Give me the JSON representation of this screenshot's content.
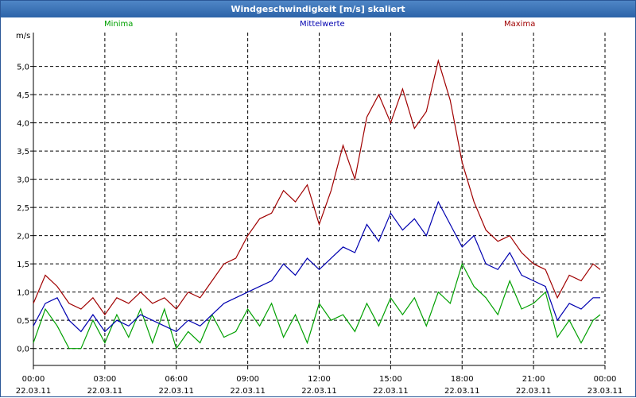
{
  "window": {
    "title": "Windgeschwindigkeit [m/s] skaliert"
  },
  "chart_data": {
    "type": "line",
    "title": "Windgeschwindigkeit [m/s] skaliert",
    "ylabel": "m/s",
    "ylim": [
      -0.3,
      5.6
    ],
    "xlim": [
      0,
      24
    ],
    "y_ticks": [
      "0,0",
      "0,5",
      "1,0",
      "1,5",
      "2,0",
      "2,5",
      "3,0",
      "3,5",
      "4,0",
      "4,5",
      "5,0"
    ],
    "y_tick_values": [
      0,
      0.5,
      1,
      1.5,
      2,
      2.5,
      3,
      3.5,
      4,
      4.5,
      5
    ],
    "x_ticks": [
      {
        "time": "00:00",
        "date": "22.03.11",
        "hour": 0
      },
      {
        "time": "03:00",
        "date": "22.03.11",
        "hour": 3
      },
      {
        "time": "06:00",
        "date": "22.03.11",
        "hour": 6
      },
      {
        "time": "09:00",
        "date": "22.03.11",
        "hour": 9
      },
      {
        "time": "12:00",
        "date": "22.03.11",
        "hour": 12
      },
      {
        "time": "15:00",
        "date": "22.03.11",
        "hour": 15
      },
      {
        "time": "18:00",
        "date": "22.03.11",
        "hour": 18
      },
      {
        "time": "21:00",
        "date": "22.03.11",
        "hour": 21
      },
      {
        "time": "00:00",
        "date": "23.03.11",
        "hour": 24
      }
    ],
    "grid": true,
    "legend_placement": "top",
    "series": [
      {
        "name": "Minima",
        "color": "#00a000",
        "x": [
          0,
          0.5,
          1,
          1.5,
          2,
          2.5,
          3,
          3.5,
          4,
          4.5,
          5,
          5.5,
          6,
          6.5,
          7,
          7.5,
          8,
          8.5,
          9,
          9.5,
          10,
          10.5,
          11,
          11.5,
          12,
          12.5,
          13,
          13.5,
          14,
          14.5,
          15,
          15.5,
          16,
          16.5,
          17,
          17.5,
          18,
          18.5,
          19,
          19.5,
          20,
          20.5,
          21,
          21.5,
          22,
          22.5,
          23,
          23.5,
          23.8
        ],
        "y": [
          0.1,
          0.7,
          0.4,
          0.0,
          0.0,
          0.5,
          0.1,
          0.6,
          0.2,
          0.7,
          0.1,
          0.7,
          0.0,
          0.3,
          0.1,
          0.6,
          0.2,
          0.3,
          0.7,
          0.4,
          0.8,
          0.2,
          0.6,
          0.1,
          0.8,
          0.5,
          0.6,
          0.3,
          0.8,
          0.4,
          0.9,
          0.6,
          0.9,
          0.4,
          1.0,
          0.8,
          1.5,
          1.1,
          0.9,
          0.6,
          1.2,
          0.7,
          0.8,
          1.0,
          0.2,
          0.5,
          0.1,
          0.5,
          0.6
        ]
      },
      {
        "name": "Mittelwerte",
        "color": "#0000b0",
        "x": [
          0,
          0.5,
          1,
          1.5,
          2,
          2.5,
          3,
          3.5,
          4,
          4.5,
          5,
          5.5,
          6,
          6.5,
          7,
          7.5,
          8,
          8.5,
          9,
          9.5,
          10,
          10.5,
          11,
          11.5,
          12,
          12.5,
          13,
          13.5,
          14,
          14.5,
          15,
          15.5,
          16,
          16.5,
          17,
          17.5,
          18,
          18.5,
          19,
          19.5,
          20,
          20.5,
          21,
          21.5,
          22,
          22.5,
          23,
          23.5,
          23.8
        ],
        "y": [
          0.4,
          0.8,
          0.9,
          0.5,
          0.3,
          0.6,
          0.3,
          0.5,
          0.4,
          0.6,
          0.5,
          0.4,
          0.3,
          0.5,
          0.4,
          0.6,
          0.8,
          0.9,
          1.0,
          1.1,
          1.2,
          1.5,
          1.3,
          1.6,
          1.4,
          1.6,
          1.8,
          1.7,
          2.2,
          1.9,
          2.4,
          2.1,
          2.3,
          2.0,
          2.6,
          2.2,
          1.8,
          2.0,
          1.5,
          1.4,
          1.7,
          1.3,
          1.2,
          1.1,
          0.5,
          0.8,
          0.7,
          0.9,
          0.9
        ]
      },
      {
        "name": "Maxima",
        "color": "#a00000",
        "x": [
          0,
          0.5,
          1,
          1.5,
          2,
          2.5,
          3,
          3.5,
          4,
          4.5,
          5,
          5.5,
          6,
          6.5,
          7,
          7.5,
          8,
          8.5,
          9,
          9.5,
          10,
          10.5,
          11,
          11.5,
          12,
          12.5,
          13,
          13.5,
          14,
          14.5,
          15,
          15.5,
          16,
          16.5,
          17,
          17.5,
          18,
          18.5,
          19,
          19.5,
          20,
          20.5,
          21,
          21.5,
          22,
          22.5,
          23,
          23.5,
          23.8
        ],
        "y": [
          0.8,
          1.3,
          1.1,
          0.8,
          0.7,
          0.9,
          0.6,
          0.9,
          0.8,
          1.0,
          0.8,
          0.9,
          0.7,
          1.0,
          0.9,
          1.2,
          1.5,
          1.6,
          2.0,
          2.3,
          2.4,
          2.8,
          2.6,
          2.9,
          2.2,
          2.8,
          3.6,
          3.0,
          4.1,
          4.5,
          4.0,
          4.6,
          3.9,
          4.2,
          5.1,
          4.4,
          3.3,
          2.6,
          2.1,
          1.9,
          2.0,
          1.7,
          1.5,
          1.4,
          0.9,
          1.3,
          1.2,
          1.5,
          1.4
        ]
      }
    ]
  }
}
